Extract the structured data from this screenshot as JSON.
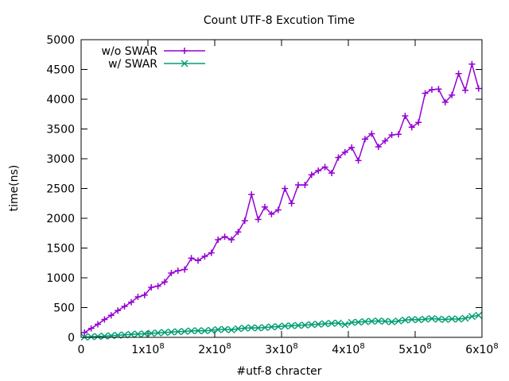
{
  "chart_data": {
    "type": "line",
    "title": "Count UTF-8 Excution Time",
    "xlabel": "#utf-8 chracter",
    "ylabel": "time(ns)",
    "xlim": [
      0,
      600000000
    ],
    "ylim": [
      0,
      5000
    ],
    "x_ticks": [
      {
        "value": 0,
        "mantissa": "0",
        "power": ""
      },
      {
        "value": 100000000,
        "mantissa": "1x10",
        "power": "8"
      },
      {
        "value": 200000000,
        "mantissa": "2x10",
        "power": "8"
      },
      {
        "value": 300000000,
        "mantissa": "3x10",
        "power": "8"
      },
      {
        "value": 400000000,
        "mantissa": "4x10",
        "power": "8"
      },
      {
        "value": 500000000,
        "mantissa": "5x10",
        "power": "8"
      },
      {
        "value": 600000000,
        "mantissa": "6x10",
        "power": "8"
      }
    ],
    "y_ticks": [
      0,
      500,
      1000,
      1500,
      2000,
      2500,
      3000,
      3500,
      4000,
      4500,
      5000
    ],
    "grid": false,
    "legend_position": "top-left",
    "x": [
      5000000,
      15000000,
      25000000,
      35000000,
      45000000,
      55000000,
      65000000,
      75000000,
      85000000,
      95000000,
      105000000,
      115000000,
      125000000,
      135000000,
      145000000,
      155000000,
      165000000,
      175000000,
      185000000,
      195000000,
      205000000,
      215000000,
      225000000,
      235000000,
      245000000,
      255000000,
      265000000,
      275000000,
      285000000,
      295000000,
      305000000,
      315000000,
      325000000,
      335000000,
      345000000,
      355000000,
      365000000,
      375000000,
      385000000,
      395000000,
      405000000,
      415000000,
      425000000,
      435000000,
      445000000,
      455000000,
      465000000,
      475000000,
      485000000,
      495000000,
      505000000,
      515000000,
      525000000,
      535000000,
      545000000,
      555000000,
      565000000,
      575000000,
      585000000,
      595000000
    ],
    "series": [
      {
        "name": "w/o SWAR",
        "color": "#9400d3",
        "marker": "plus",
        "values": [
          80,
          150,
          220,
          300,
          370,
          450,
          520,
          590,
          680,
          710,
          840,
          860,
          930,
          1080,
          1120,
          1140,
          1330,
          1290,
          1360,
          1420,
          1640,
          1690,
          1640,
          1770,
          1960,
          2400,
          1980,
          2190,
          2070,
          2140,
          2500,
          2250,
          2560,
          2560,
          2730,
          2800,
          2860,
          2760,
          3020,
          3110,
          3190,
          2970,
          3330,
          3420,
          3200,
          3300,
          3400,
          3410,
          3720,
          3530,
          3610,
          4100,
          4160,
          4170,
          3950,
          4070,
          4430,
          4150,
          4590,
          4180
        ]
      },
      {
        "name": "w/ SWAR",
        "color": "#009e73",
        "marker": "cross",
        "values": [
          5,
          10,
          15,
          20,
          28,
          35,
          42,
          50,
          55,
          60,
          68,
          75,
          82,
          88,
          95,
          100,
          108,
          112,
          110,
          118,
          130,
          135,
          125,
          145,
          155,
          160,
          158,
          165,
          175,
          180,
          190,
          195,
          200,
          205,
          215,
          220,
          228,
          235,
          240,
          215,
          250,
          255,
          265,
          270,
          275,
          270,
          260,
          275,
          290,
          300,
          295,
          305,
          315,
          305,
          300,
          310,
          305,
          320,
          350,
          370
        ]
      }
    ]
  }
}
